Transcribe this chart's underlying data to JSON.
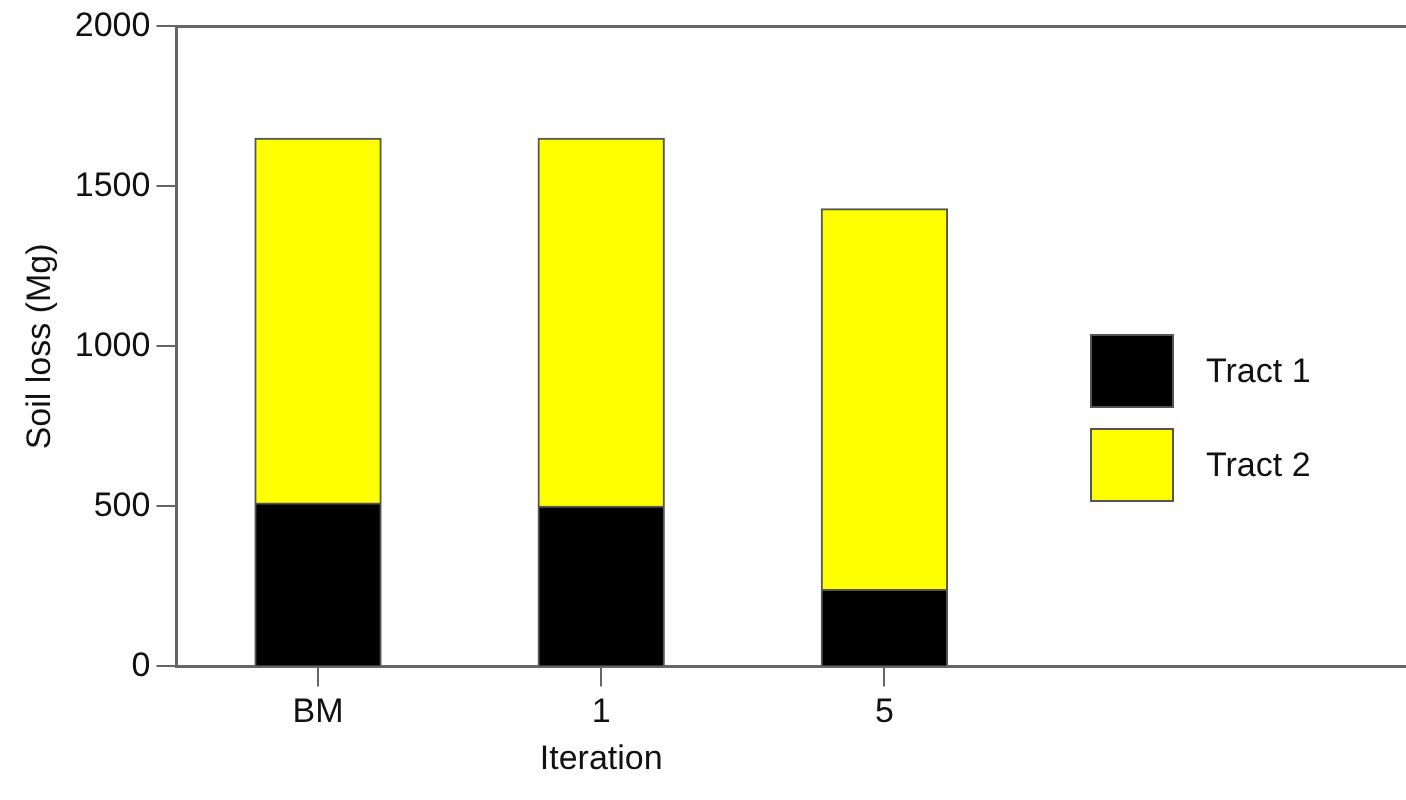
{
  "chart_data": {
    "type": "bar",
    "stacked": true,
    "xlabel": "Iteration",
    "ylabel": "Soil loss (Mg)",
    "categories": [
      "BM",
      "1",
      "5"
    ],
    "series": [
      {
        "name": "Tract 1",
        "color": "#000000",
        "values": [
          510,
          500,
          240
        ]
      },
      {
        "name": "Tract 2",
        "color": "#ffff00",
        "values": [
          1140,
          1150,
          1190
        ]
      }
    ],
    "ylim": [
      0,
      2000
    ],
    "yticks": [
      0,
      500,
      1000,
      1500,
      2000
    ],
    "grid": false,
    "legend": "right"
  }
}
